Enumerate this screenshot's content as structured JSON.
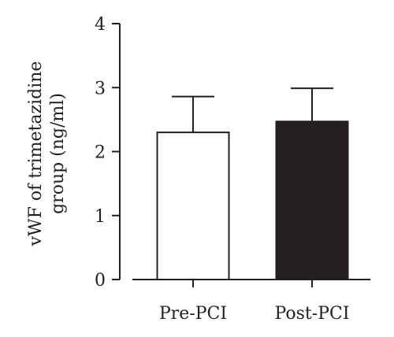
{
  "chart_data": {
    "type": "bar",
    "title": "",
    "xlabel": "",
    "ylabel": [
      "vWF of trimetazidine",
      "group (ng/ml)"
    ],
    "categories": [
      "Pre-PCI",
      "Post-PCI"
    ],
    "values": [
      2.3,
      2.47
    ],
    "error_upper": [
      2.86,
      2.99
    ],
    "bar_fill": [
      "#ffffff",
      "#231f20"
    ],
    "bar_stroke": "#231f20",
    "ylim": [
      0,
      4
    ],
    "yticks": [
      "0",
      "1",
      "2",
      "3",
      "4"
    ],
    "grid": false,
    "legend": "none"
  }
}
